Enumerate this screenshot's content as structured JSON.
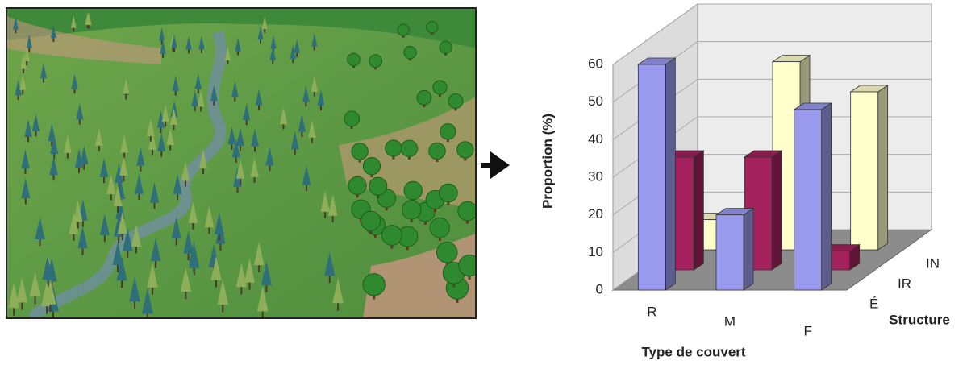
{
  "chart_data": {
    "type": "bar3d",
    "ylabel": "Proportion (%)",
    "xlabel": "Type de couvert",
    "zlabel": "Structure",
    "categories": [
      "R",
      "M",
      "F"
    ],
    "series": [
      {
        "name": "É",
        "color": "#9999ee",
        "values": [
          60,
          20,
          48
        ]
      },
      {
        "name": "IR",
        "color": "#a3215c",
        "values": [
          30,
          30,
          5
        ]
      },
      {
        "name": "IN",
        "color": "#ffffcc",
        "values": [
          8,
          50,
          42
        ]
      }
    ],
    "ylim": [
      0,
      60
    ],
    "yticks": [
      0,
      10,
      20,
      30,
      40,
      50,
      60
    ],
    "grid": true
  }
}
